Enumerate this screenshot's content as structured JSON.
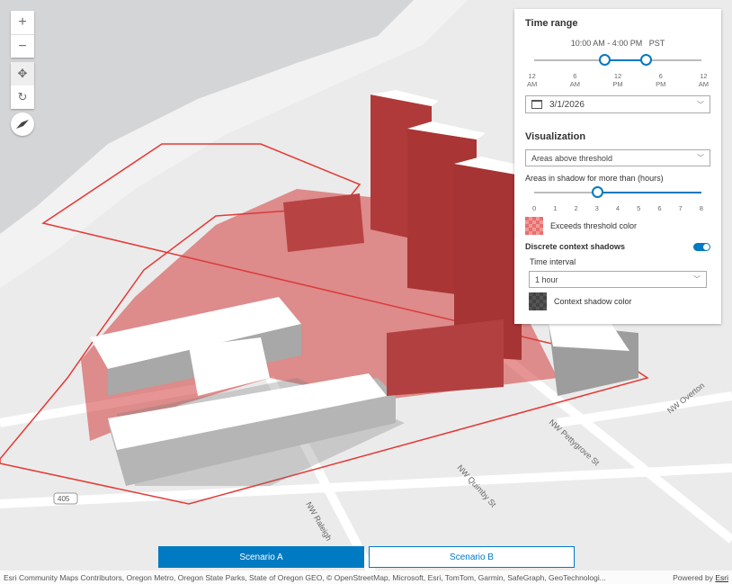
{
  "map_controls": {
    "zoom_in": "+",
    "zoom_out": "−",
    "pan_icon": "move-icon",
    "rotate_icon": "rotate-icon",
    "compass_icon": "compass-icon"
  },
  "street_labels": [
    "NW Pettygrove St",
    "NW Quimby St",
    "NW Raleigh",
    "NW Overton",
    "405"
  ],
  "panel": {
    "time_range": {
      "title": "Time range",
      "value": "10:00 AM - 4:00 PM",
      "timezone": "PST",
      "start_hour": 10,
      "end_hour": 16,
      "ticks": [
        [
          "12",
          "AM"
        ],
        [
          "6",
          "AM"
        ],
        [
          "12",
          "PM"
        ],
        [
          "6",
          "PM"
        ],
        [
          "12",
          "AM"
        ]
      ],
      "date": "3/1/2026"
    },
    "visualization": {
      "title": "Visualization",
      "mode": "Areas above threshold",
      "threshold_label": "Areas in shadow for more than (hours)",
      "threshold_value": 3,
      "threshold_ticks": [
        "0",
        "1",
        "2",
        "3",
        "4",
        "5",
        "6",
        "7",
        "8"
      ],
      "exceeds_color_label": "Exceeds threshold color",
      "exceeds_color": "#e8706f"
    },
    "context": {
      "label": "Discrete context shadows",
      "enabled": true,
      "interval_label": "Time interval",
      "interval": "1 hour",
      "shadow_color_label": "Context shadow color",
      "shadow_color": "#555555"
    }
  },
  "scenarios": {
    "a": "Scenario A",
    "b": "Scenario B",
    "active": "a",
    "accent": "#007ac2"
  },
  "attribution": {
    "text": "Esri Community Maps Contributors, Oregon Metro, Oregon State Parks, State of Oregon GEO, © OpenStreetMap, Microsoft, Esri, TomTom, Garmin, SafeGraph, GeoTechnologi...",
    "powered": "Powered by ",
    "esri": "Esri"
  }
}
